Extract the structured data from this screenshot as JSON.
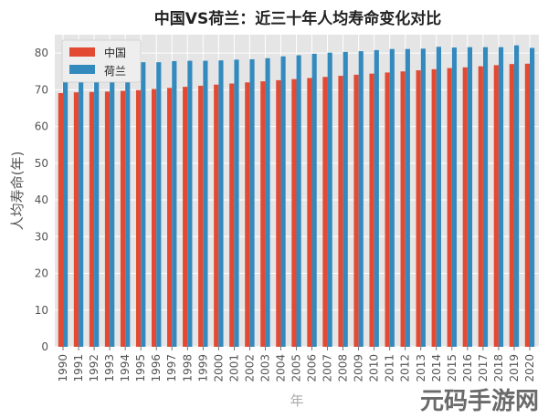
{
  "chart_data": {
    "type": "bar",
    "title": "中国VS荷兰：近三十年人均寿命变化对比",
    "xlabel": "年",
    "ylabel": "人均寿命(年)",
    "ylim": [
      0,
      85
    ],
    "yticks": [
      0,
      10,
      20,
      30,
      40,
      50,
      60,
      70,
      80
    ],
    "grid": true,
    "legend_position": "top-left",
    "categories": [
      "1990",
      "1991",
      "1992",
      "1993",
      "1994",
      "1995",
      "1996",
      "1997",
      "1998",
      "1999",
      "2000",
      "2001",
      "2002",
      "2003",
      "2004",
      "2005",
      "2006",
      "2007",
      "2008",
      "2009",
      "2010",
      "2011",
      "2012",
      "2013",
      "2014",
      "2015",
      "2016",
      "2017",
      "2018",
      "2019",
      "2020"
    ],
    "series": [
      {
        "name": "中国",
        "color": "#e24a33",
        "values": [
          69.1,
          69.3,
          69.4,
          69.5,
          69.7,
          69.9,
          70.2,
          70.5,
          70.8,
          71.1,
          71.4,
          71.7,
          72.0,
          72.3,
          72.6,
          72.9,
          73.2,
          73.5,
          73.8,
          74.1,
          74.4,
          74.7,
          75.0,
          75.3,
          75.6,
          75.9,
          76.1,
          76.4,
          76.7,
          77.0,
          77.1
        ]
      },
      {
        "name": "荷兰",
        "color": "#348abd",
        "values": [
          77.0,
          77.0,
          77.2,
          77.1,
          77.4,
          77.5,
          77.5,
          77.8,
          77.9,
          77.9,
          78.0,
          78.2,
          78.3,
          78.6,
          79.1,
          79.4,
          79.8,
          80.1,
          80.3,
          80.5,
          80.8,
          81.1,
          81.1,
          81.2,
          81.7,
          81.5,
          81.6,
          81.6,
          81.6,
          82.1,
          81.4
        ]
      }
    ]
  },
  "watermark": {
    "text": "元码手游网"
  }
}
